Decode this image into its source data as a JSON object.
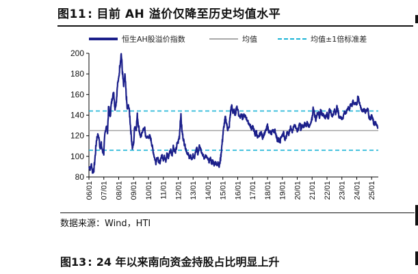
{
  "figure_top": {
    "label": "图11",
    "title": "目前 AH 溢价仅降至历史均值水平"
  },
  "legend": {
    "main": "恒生AH股溢价指数",
    "mean": "均值",
    "band": "均值±1倍标准差"
  },
  "source": "数据来源：Wind，HTI",
  "figure_bottom": {
    "label": "图13",
    "title": "24 年以来南向资金持股占比明显上升"
  },
  "colors": {
    "main_series": "#1b1f8a",
    "mean_line": "#a8a8a8",
    "band_lines": "#19b3d6"
  },
  "chart_data": {
    "type": "line",
    "title": "恒生AH股溢价指数",
    "xlabel": "",
    "ylabel": "",
    "ylim": [
      80,
      200
    ],
    "yticks": [
      80,
      100,
      120,
      140,
      160,
      180,
      200
    ],
    "xticks": [
      "06/01",
      "07/01",
      "08/01",
      "09/01",
      "10/01",
      "11/01",
      "12/01",
      "13/01",
      "14/01",
      "15/01",
      "16/01",
      "17/01",
      "18/01",
      "19/01",
      "20/01",
      "21/01",
      "22/01",
      "23/01",
      "24/01",
      "25/01"
    ],
    "x_start_year": 2006.0,
    "x_end_year": 2025.45,
    "series": [
      {
        "name": "恒生AH股溢价指数",
        "points": [
          [
            2006.0,
            90
          ],
          [
            2006.08,
            88
          ],
          [
            2006.17,
            92
          ],
          [
            2006.25,
            84
          ],
          [
            2006.33,
            87
          ],
          [
            2006.42,
            100
          ],
          [
            2006.5,
            115
          ],
          [
            2006.58,
            121
          ],
          [
            2006.67,
            118
          ],
          [
            2006.75,
            108
          ],
          [
            2006.83,
            112
          ],
          [
            2006.92,
            104
          ],
          [
            2007.0,
            103
          ],
          [
            2007.08,
            122
          ],
          [
            2007.17,
            130
          ],
          [
            2007.25,
            126
          ],
          [
            2007.33,
            148
          ],
          [
            2007.42,
            138
          ],
          [
            2007.5,
            150
          ],
          [
            2007.58,
            158
          ],
          [
            2007.67,
            162
          ],
          [
            2007.75,
            146
          ],
          [
            2007.83,
            152
          ],
          [
            2007.92,
            170
          ],
          [
            2008.0,
            175
          ],
          [
            2008.08,
            188
          ],
          [
            2008.17,
            200
          ],
          [
            2008.25,
            182
          ],
          [
            2008.33,
            168
          ],
          [
            2008.42,
            178
          ],
          [
            2008.5,
            160
          ],
          [
            2008.58,
            145
          ],
          [
            2008.67,
            150
          ],
          [
            2008.75,
            138
          ],
          [
            2008.83,
            122
          ],
          [
            2008.92,
            108
          ],
          [
            2009.0,
            112
          ],
          [
            2009.08,
            130
          ],
          [
            2009.17,
            126
          ],
          [
            2009.25,
            140
          ],
          [
            2009.33,
            130
          ],
          [
            2009.42,
            122
          ],
          [
            2009.5,
            118
          ],
          [
            2009.58,
            124
          ],
          [
            2009.67,
            126
          ],
          [
            2009.75,
            127
          ],
          [
            2009.83,
            118
          ],
          [
            2009.92,
            119
          ],
          [
            2010.0,
            118
          ],
          [
            2010.08,
            120
          ],
          [
            2010.17,
            116
          ],
          [
            2010.25,
            110
          ],
          [
            2010.33,
            104
          ],
          [
            2010.42,
            98
          ],
          [
            2010.5,
            94
          ],
          [
            2010.58,
            100
          ],
          [
            2010.67,
            96
          ],
          [
            2010.75,
            93
          ],
          [
            2010.83,
            98
          ],
          [
            2010.92,
            101
          ],
          [
            2011.0,
            97
          ],
          [
            2011.08,
            100
          ],
          [
            2011.17,
            96
          ],
          [
            2011.25,
            103
          ],
          [
            2011.33,
            98
          ],
          [
            2011.42,
            104
          ],
          [
            2011.5,
            106
          ],
          [
            2011.58,
            101
          ],
          [
            2011.67,
            110
          ],
          [
            2011.75,
            106
          ],
          [
            2011.83,
            104
          ],
          [
            2011.92,
            112
          ],
          [
            2012.0,
            114
          ],
          [
            2012.08,
            120
          ],
          [
            2012.17,
            141
          ],
          [
            2012.25,
            125
          ],
          [
            2012.33,
            118
          ],
          [
            2012.42,
            112
          ],
          [
            2012.5,
            108
          ],
          [
            2012.58,
            104
          ],
          [
            2012.67,
            102
          ],
          [
            2012.75,
            99
          ],
          [
            2012.83,
            100
          ],
          [
            2012.92,
            97
          ],
          [
            2013.0,
            101
          ],
          [
            2013.08,
            98
          ],
          [
            2013.17,
            104
          ],
          [
            2013.25,
            108
          ],
          [
            2013.33,
            102
          ],
          [
            2013.42,
            112
          ],
          [
            2013.5,
            108
          ],
          [
            2013.58,
            104
          ],
          [
            2013.67,
            101
          ],
          [
            2013.75,
            98
          ],
          [
            2013.83,
            101
          ],
          [
            2013.92,
            99
          ],
          [
            2014.0,
            97
          ],
          [
            2014.08,
            95
          ],
          [
            2014.17,
            98
          ],
          [
            2014.25,
            93
          ],
          [
            2014.33,
            96
          ],
          [
            2014.42,
            92
          ],
          [
            2014.5,
            95
          ],
          [
            2014.58,
            91
          ],
          [
            2014.67,
            95
          ],
          [
            2014.75,
            90
          ],
          [
            2014.83,
            96
          ],
          [
            2014.92,
            108
          ],
          [
            2015.0,
            120
          ],
          [
            2015.08,
            130
          ],
          [
            2015.17,
            138
          ],
          [
            2015.25,
            132
          ],
          [
            2015.33,
            126
          ],
          [
            2015.42,
            128
          ],
          [
            2015.5,
            140
          ],
          [
            2015.58,
            150
          ],
          [
            2015.67,
            142
          ],
          [
            2015.75,
            145
          ],
          [
            2015.83,
            140
          ],
          [
            2015.92,
            148
          ],
          [
            2016.0,
            146
          ],
          [
            2016.08,
            140
          ],
          [
            2016.17,
            138
          ],
          [
            2016.25,
            142
          ],
          [
            2016.33,
            136
          ],
          [
            2016.42,
            140
          ],
          [
            2016.5,
            139
          ],
          [
            2016.58,
            137
          ],
          [
            2016.67,
            134
          ],
          [
            2016.75,
            132
          ],
          [
            2016.83,
            130
          ],
          [
            2016.92,
            127
          ],
          [
            2017.0,
            129
          ],
          [
            2017.08,
            126
          ],
          [
            2017.17,
            120
          ],
          [
            2017.25,
            125
          ],
          [
            2017.33,
            118
          ],
          [
            2017.42,
            119
          ],
          [
            2017.5,
            122
          ],
          [
            2017.58,
            123
          ],
          [
            2017.67,
            118
          ],
          [
            2017.75,
            121
          ],
          [
            2017.83,
            123
          ],
          [
            2017.92,
            126
          ],
          [
            2018.0,
            130
          ],
          [
            2018.08,
            124
          ],
          [
            2018.17,
            124
          ],
          [
            2018.25,
            121
          ],
          [
            2018.33,
            126
          ],
          [
            2018.42,
            124
          ],
          [
            2018.5,
            125
          ],
          [
            2018.58,
            121
          ],
          [
            2018.67,
            115
          ],
          [
            2018.75,
            117
          ],
          [
            2018.83,
            113
          ],
          [
            2018.92,
            119
          ],
          [
            2019.0,
            120
          ],
          [
            2019.08,
            123
          ],
          [
            2019.17,
            116
          ],
          [
            2019.25,
            118
          ],
          [
            2019.33,
            124
          ],
          [
            2019.42,
            121
          ],
          [
            2019.5,
            126
          ],
          [
            2019.58,
            129
          ],
          [
            2019.67,
            124
          ],
          [
            2019.75,
            128
          ],
          [
            2019.83,
            130
          ],
          [
            2019.92,
            127
          ],
          [
            2020.0,
            125
          ],
          [
            2020.08,
            127
          ],
          [
            2020.17,
            133
          ],
          [
            2020.25,
            126
          ],
          [
            2020.33,
            130
          ],
          [
            2020.42,
            128
          ],
          [
            2020.5,
            132
          ],
          [
            2020.58,
            129
          ],
          [
            2020.67,
            133
          ],
          [
            2020.75,
            130
          ],
          [
            2020.83,
            129
          ],
          [
            2020.92,
            132
          ],
          [
            2021.0,
            137
          ],
          [
            2021.08,
            148
          ],
          [
            2021.17,
            140
          ],
          [
            2021.25,
            135
          ],
          [
            2021.33,
            141
          ],
          [
            2021.42,
            143
          ],
          [
            2021.5,
            138
          ],
          [
            2021.58,
            146
          ],
          [
            2021.67,
            140
          ],
          [
            2021.75,
            143
          ],
          [
            2021.83,
            136
          ],
          [
            2021.92,
            139
          ],
          [
            2022.0,
            141
          ],
          [
            2022.08,
            137
          ],
          [
            2022.17,
            146
          ],
          [
            2022.25,
            143
          ],
          [
            2022.33,
            139
          ],
          [
            2022.42,
            141
          ],
          [
            2022.5,
            145
          ],
          [
            2022.58,
            142
          ],
          [
            2022.67,
            148
          ],
          [
            2022.75,
            143
          ],
          [
            2022.83,
            137
          ],
          [
            2022.92,
            139
          ],
          [
            2023.0,
            136
          ],
          [
            2023.08,
            138
          ],
          [
            2023.17,
            143
          ],
          [
            2023.25,
            141
          ],
          [
            2023.33,
            144
          ],
          [
            2023.42,
            148
          ],
          [
            2023.5,
            146
          ],
          [
            2023.58,
            150
          ],
          [
            2023.67,
            149
          ],
          [
            2023.75,
            155
          ],
          [
            2023.83,
            150
          ],
          [
            2023.92,
            152
          ],
          [
            2024.0,
            150
          ],
          [
            2024.08,
            158
          ],
          [
            2024.17,
            152
          ],
          [
            2024.25,
            149
          ],
          [
            2024.33,
            145
          ],
          [
            2024.42,
            144
          ],
          [
            2024.5,
            146
          ],
          [
            2024.58,
            143
          ],
          [
            2024.67,
            145
          ],
          [
            2024.75,
            146
          ],
          [
            2024.83,
            138
          ],
          [
            2024.92,
            136
          ],
          [
            2025.0,
            141
          ],
          [
            2025.08,
            136
          ],
          [
            2025.17,
            131
          ],
          [
            2025.25,
            133
          ],
          [
            2025.33,
            130
          ],
          [
            2025.42,
            128
          ]
        ]
      },
      {
        "name": "均值",
        "value": 125
      },
      {
        "name": "均值±1倍标准差",
        "values": [
          106,
          144
        ]
      }
    ]
  }
}
